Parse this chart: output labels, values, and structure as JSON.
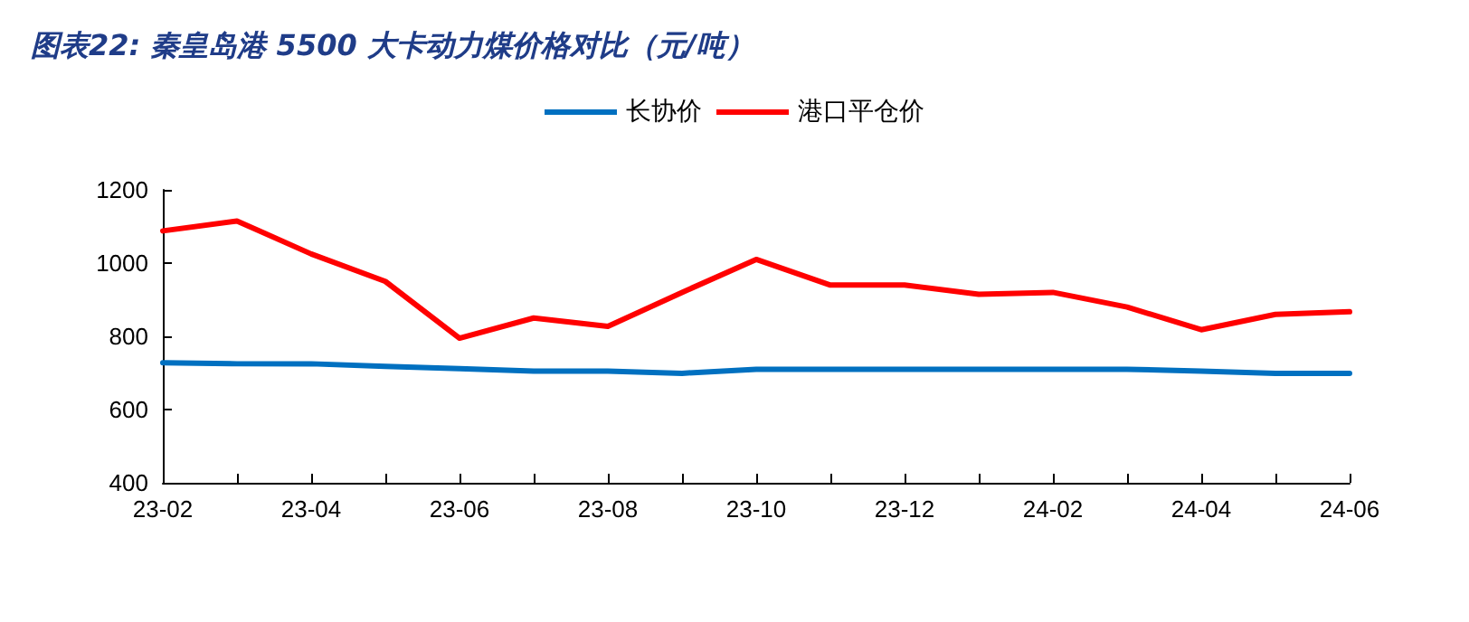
{
  "chart_data": {
    "type": "line",
    "title": "图表22: 秦皇岛港 5500 大卡动力煤价格对比（元/吨）",
    "categories": [
      "23-02",
      null,
      "23-04",
      null,
      "23-06",
      null,
      "23-08",
      null,
      "23-10",
      null,
      "23-12",
      null,
      "24-02",
      null,
      "24-04",
      null,
      "24-06"
    ],
    "series": [
      {
        "name": "长协价",
        "color": "#0070c0",
        "values": [
          728,
          725,
          725,
          718,
          712,
          705,
          705,
          699,
          710,
          710,
          710,
          710,
          710,
          710,
          705,
          699,
          699
        ]
      },
      {
        "name": "港口平仓价",
        "color": "#ff0000",
        "values": [
          1088,
          1115,
          1025,
          950,
          795,
          850,
          827,
          920,
          1010,
          940,
          940,
          915,
          920,
          880,
          818,
          860,
          867
        ]
      }
    ],
    "ylim": [
      400,
      1200
    ],
    "yticks": [
      400,
      600,
      800,
      1000,
      1200
    ],
    "grid": false,
    "legend": "top",
    "marker": "none",
    "line_style": "solid"
  }
}
